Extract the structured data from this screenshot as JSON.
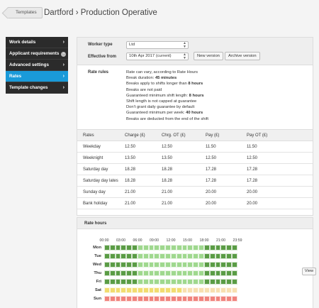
{
  "header": {
    "back_label": "Templates",
    "title": "Dartford › Production Operative"
  },
  "sidebar": {
    "items": [
      {
        "label": "Work details",
        "active": false,
        "info": false
      },
      {
        "label": "Applicant requirements",
        "active": false,
        "info": true
      },
      {
        "label": "Advanced settings",
        "active": false,
        "info": false
      },
      {
        "label": "Rates",
        "active": true,
        "info": false
      },
      {
        "label": "Template changes",
        "active": false,
        "info": false
      }
    ]
  },
  "form": {
    "worker_type_label": "Worker type",
    "worker_type_value": "Ltd",
    "effective_from_label": "Effective from",
    "effective_from_value": "10th Apr 2017 (current)",
    "new_version_label": "New version",
    "archive_version_label": "Archive version"
  },
  "rate_rules": {
    "label": "Rate rules",
    "lines": [
      {
        "text": "Rate can vary, according to Rate Hours",
        "bold": ""
      },
      {
        "text": "Break duration: ",
        "bold": "45 minutes"
      },
      {
        "text": "Breaks apply to shifts longer than ",
        "bold": "8 hours"
      },
      {
        "text": "Breaks are not paid",
        "bold": ""
      },
      {
        "text": "Guaranteed minimum shift length: ",
        "bold": "8 hours"
      },
      {
        "text": "Shift length is not capped at guarantee",
        "bold": ""
      },
      {
        "text": "Don't grant daily guarantee by default",
        "bold": ""
      },
      {
        "text": "Guaranteed minimum per week: ",
        "bold": "40 hours"
      },
      {
        "text": "Breaks are deducted from the end of the shift",
        "bold": ""
      }
    ]
  },
  "rates_table": {
    "headers": [
      "Rates",
      "Charge (£)",
      "Chrg. OT (£)",
      "Pay (£)",
      "Pay OT (£)"
    ],
    "rows": [
      [
        "Weekday",
        "12.50",
        "12.50",
        "11.50",
        "11.50"
      ],
      [
        "Weeknight",
        "13.50",
        "13.50",
        "12.50",
        "12.50"
      ],
      [
        "Saturday day",
        "18.28",
        "18.28",
        "17.28",
        "17.28"
      ],
      [
        "Saturday day lates",
        "18.28",
        "18.28",
        "17.28",
        "17.28"
      ],
      [
        "Sunday day",
        "21.00",
        "21.00",
        "20.00",
        "20.00"
      ],
      [
        "Bank holiday",
        "21.00",
        "21.00",
        "20.00",
        "20.00"
      ]
    ]
  },
  "rate_hours": {
    "title": "Rate hours",
    "hour_labels": [
      "00:00",
      "03:00",
      "06:00",
      "09:00",
      "12:00",
      "15:00",
      "18:00",
      "21:00",
      "23:59"
    ],
    "days": [
      "Mon",
      "Tue",
      "Wed",
      "Thu",
      "Fri",
      "Sat",
      "Sun"
    ],
    "view_label": "View",
    "colors": {
      "weeknight": "#5a9c45",
      "weekday": "#9fd88e",
      "saturday_day": "#f1dc6f",
      "saturday_lates": "#f7dfb0",
      "sunday": "#f0837d"
    },
    "segments": [
      [
        {
          "rate": "weeknight",
          "hours": 6
        },
        {
          "rate": "weekday",
          "hours": 12
        },
        {
          "rate": "weeknight",
          "hours": 6
        }
      ],
      [
        {
          "rate": "weeknight",
          "hours": 6
        },
        {
          "rate": "weekday",
          "hours": 12
        },
        {
          "rate": "weeknight",
          "hours": 6
        }
      ],
      [
        {
          "rate": "weeknight",
          "hours": 6
        },
        {
          "rate": "weekday",
          "hours": 12
        },
        {
          "rate": "weeknight",
          "hours": 6
        }
      ],
      [
        {
          "rate": "weeknight",
          "hours": 6
        },
        {
          "rate": "weekday",
          "hours": 12
        },
        {
          "rate": "weeknight",
          "hours": 6
        }
      ],
      [
        {
          "rate": "weeknight",
          "hours": 6
        },
        {
          "rate": "weekday",
          "hours": 12
        },
        {
          "rate": "weeknight",
          "hours": 6
        }
      ],
      [
        {
          "rate": "saturday_day",
          "hours": 14
        },
        {
          "rate": "saturday_lates",
          "hours": 10
        }
      ],
      [
        {
          "rate": "sunday",
          "hours": 24
        }
      ]
    ]
  }
}
